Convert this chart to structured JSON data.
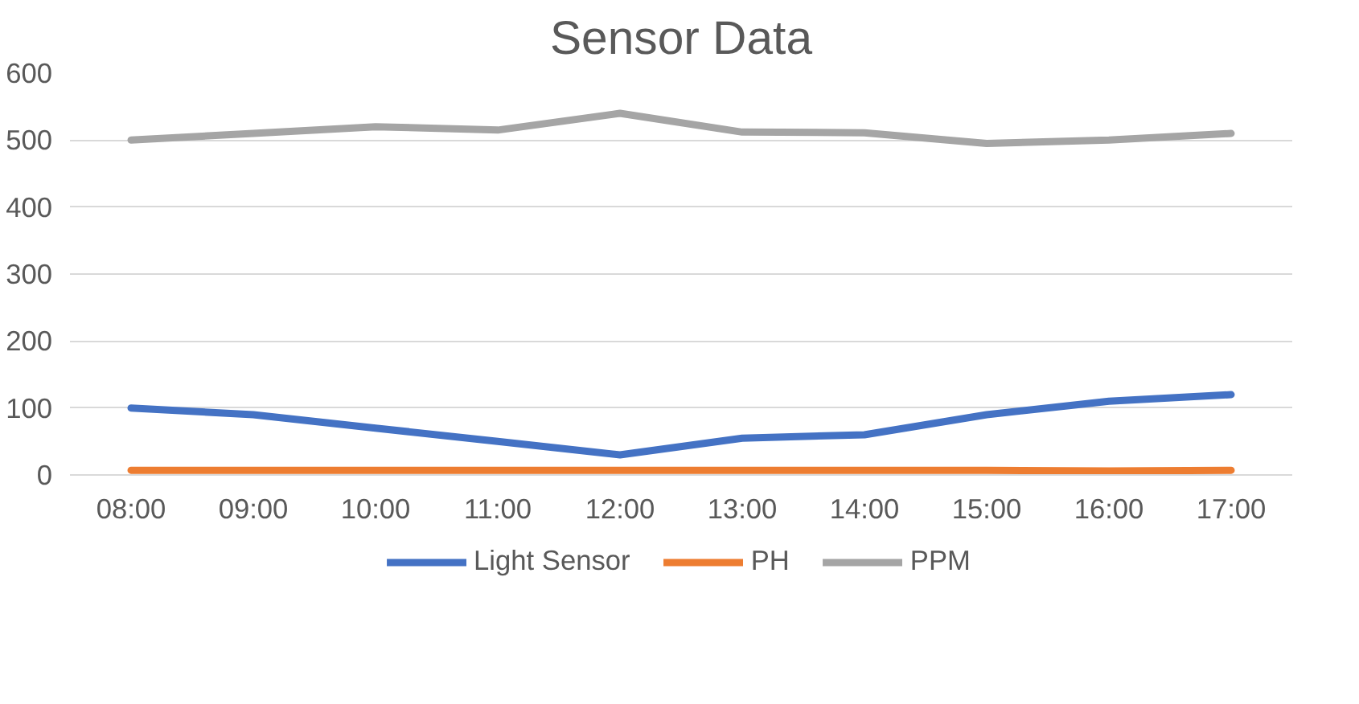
{
  "chart_data": {
    "type": "line",
    "title": "Sensor Data",
    "categories": [
      "08:00",
      "09:00",
      "10:00",
      "11:00",
      "12:00",
      "13:00",
      "14:00",
      "15:00",
      "16:00",
      "17:00"
    ],
    "series": [
      {
        "name": "Light Sensor",
        "color": "#4472c4",
        "values": [
          100,
          90,
          70,
          50,
          30,
          55,
          60,
          90,
          110,
          120
        ]
      },
      {
        "name": "PH",
        "color": "#ed7d31",
        "values": [
          7,
          7,
          7,
          7,
          7,
          7,
          7,
          7,
          6,
          7
        ]
      },
      {
        "name": "PPM",
        "color": "#a5a5a5",
        "values": [
          500,
          510,
          520,
          515,
          540,
          512,
          511,
          495,
          500,
          510
        ]
      }
    ],
    "ylim": [
      0,
      600
    ],
    "yticks": [
      0,
      100,
      200,
      300,
      400,
      500,
      600
    ],
    "grid": "y",
    "legend": "bottom",
    "marker": "none",
    "line_style": "solid"
  }
}
